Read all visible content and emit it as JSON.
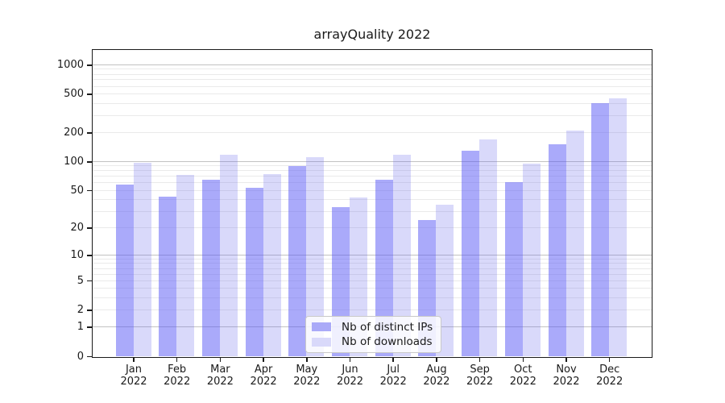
{
  "figure": {
    "title": "arrayQuality 2022",
    "background": "#ffffff"
  },
  "chart_data": {
    "type": "bar",
    "title": "arrayQuality 2022",
    "xlabel": "",
    "ylabel": "",
    "categories": [
      "Jan 2022",
      "Feb 2022",
      "Mar 2022",
      "Apr 2022",
      "May 2022",
      "Jun 2022",
      "Jul 2022",
      "Aug 2022",
      "Sep 2022",
      "Oct 2022",
      "Nov 2022",
      "Dec 2022"
    ],
    "series": [
      {
        "name": "Nb of distinct IPs",
        "color": "#aaaaf8",
        "fill": "rgba(85,85,245,0.5)",
        "values": [
          57,
          43,
          64,
          53,
          90,
          33,
          64,
          24,
          130,
          61,
          150,
          400
        ]
      },
      {
        "name": "Nb of downloads",
        "color": "#d9d9fa",
        "fill": "rgba(105,105,235,0.25)",
        "values": [
          97,
          72,
          118,
          74,
          110,
          42,
          117,
          35,
          170,
          95,
          210,
          450
        ]
      }
    ],
    "yscale": "log10(1+y)",
    "yticks": [
      1000,
      500,
      200,
      100,
      50,
      20,
      10,
      5,
      2,
      1,
      0
    ],
    "ylim": [
      0,
      1420
    ],
    "grid": "horizontal",
    "grid_color_major": "#c2c2c2",
    "grid_color_minor": "#eaeaea",
    "legend_position": "bottom-center",
    "frame_color": "#1a1a1a"
  }
}
